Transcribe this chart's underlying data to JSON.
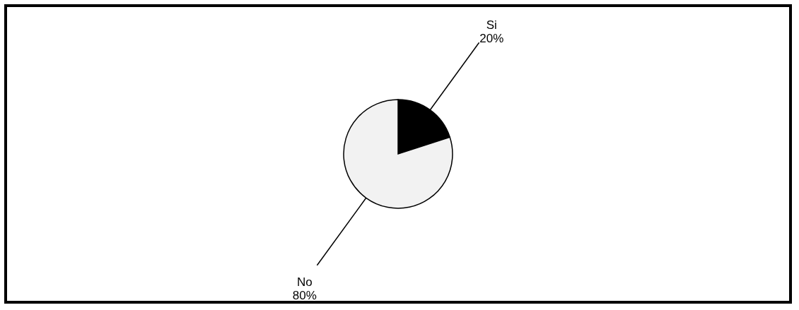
{
  "chart_data": {
    "type": "pie",
    "categories": [
      "Si",
      "No"
    ],
    "values": [
      20,
      80
    ],
    "colors": [
      "#000000",
      "#f2f2f2"
    ],
    "value_labels": [
      "20%",
      "80%"
    ],
    "legend": false
  }
}
